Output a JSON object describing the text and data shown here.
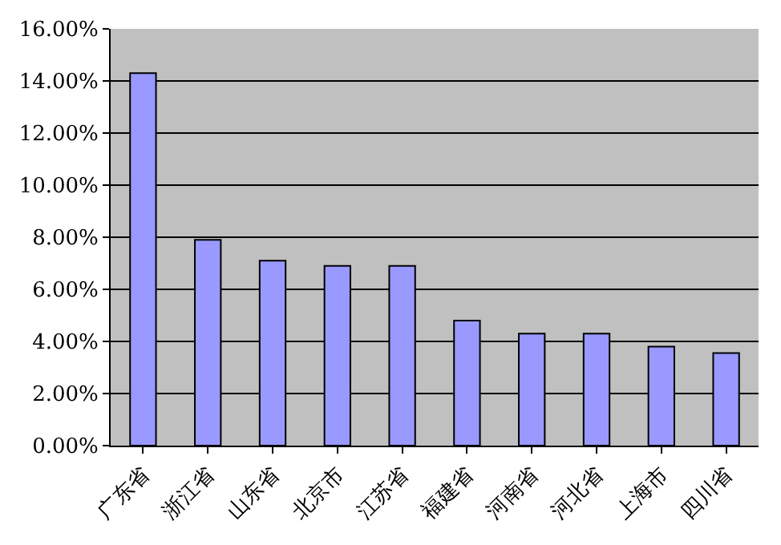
{
  "chart_data": {
    "type": "bar",
    "categories": [
      "广东省",
      "浙江省",
      "山东省",
      "北京市",
      "江苏省",
      "福建省",
      "河南省",
      "河北省",
      "上海市",
      "四川省"
    ],
    "values": [
      14.3,
      7.9,
      7.1,
      6.9,
      6.9,
      4.8,
      4.3,
      4.3,
      3.8,
      3.55
    ],
    "color": "#9999ff",
    "ylim": [
      0,
      16
    ],
    "yticks": [
      {
        "value": 0,
        "label": "0.00%"
      },
      {
        "value": 2,
        "label": "2.00%"
      },
      {
        "value": 4,
        "label": "4.00%"
      },
      {
        "value": 6,
        "label": "6.00%"
      },
      {
        "value": 8,
        "label": "8.00%"
      },
      {
        "value": 10,
        "label": "10.00%"
      },
      {
        "value": 12,
        "label": "12.00%"
      },
      {
        "value": 14,
        "label": "14.00%"
      },
      {
        "value": 16,
        "label": "16.00%"
      }
    ],
    "grid": "y"
  }
}
